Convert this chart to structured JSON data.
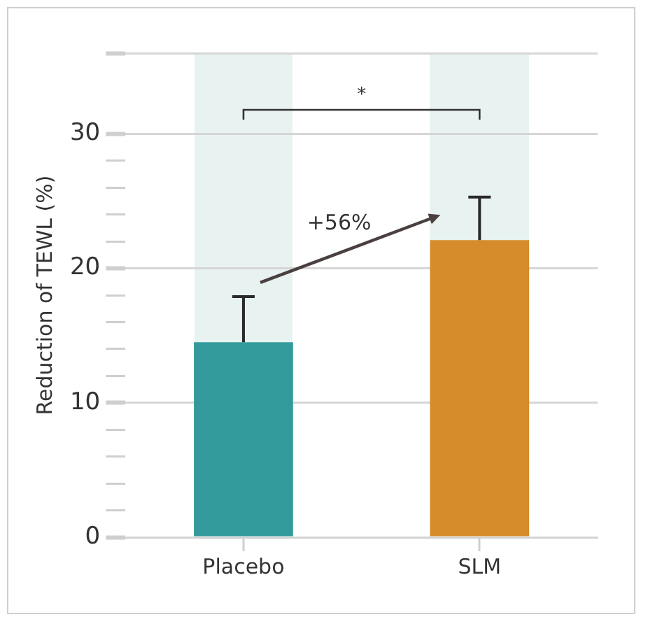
{
  "chart_data": {
    "type": "bar",
    "ylabel": "Reduction of TEWL (%)",
    "categories": [
      "Placebo",
      "SLM"
    ],
    "values": [
      14.5,
      22.1
    ],
    "colors": [
      "#339a9c",
      "#d68c2a"
    ],
    "errors": [
      3.4,
      3.2
    ],
    "ylim": [
      0,
      36
    ],
    "yticks": [
      0,
      {
        "value": 2,
        "label": null
      },
      {
        "value": 4,
        "label": null
      },
      {
        "value": 6,
        "label": null
      },
      {
        "value": 8,
        "label": null
      },
      10,
      {
        "value": 12,
        "label": null
      },
      {
        "value": 14,
        "label": null
      },
      {
        "value": 16,
        "label": null
      },
      {
        "value": 18,
        "label": null
      },
      20,
      {
        "value": 22,
        "label": null
      },
      {
        "value": 24,
        "label": null
      },
      {
        "value": 26,
        "label": null
      },
      {
        "value": 28,
        "label": null
      },
      30,
      {
        "value": 36,
        "label": null
      }
    ],
    "grid": "y",
    "annotations": [
      "*",
      "+56%"
    ]
  }
}
